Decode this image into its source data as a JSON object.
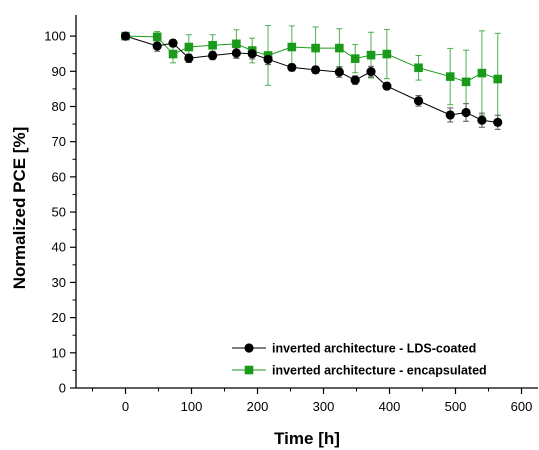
{
  "chart_data": {
    "type": "line",
    "xlabel": "Time [h]",
    "ylabel": "Normalized PCE [%]",
    "xlim": [
      -75,
      625
    ],
    "ylim": [
      0,
      106
    ],
    "xticks": [
      0,
      100,
      200,
      300,
      400,
      500,
      600
    ],
    "yticks": [
      0,
      10,
      20,
      30,
      40,
      50,
      60,
      70,
      80,
      90,
      100
    ],
    "legend_position": "bottom-right",
    "grid": false,
    "series": [
      {
        "name": "inverted architecture - LDS-coated",
        "color": "#000000",
        "marker": "circle",
        "x": [
          0,
          48,
          72,
          96,
          132,
          168,
          192,
          216,
          252,
          288,
          324,
          348,
          372,
          396,
          444,
          492,
          516,
          540,
          564
        ],
        "y": [
          100,
          97.2,
          98.0,
          93.7,
          94.5,
          95.2,
          95.0,
          93.4,
          91.1,
          90.4,
          89.8,
          87.5,
          89.9,
          85.8,
          81.6,
          77.6,
          78.3,
          76.1,
          75.5
        ],
        "err": [
          0.5,
          1.5,
          1.0,
          1.2,
          1.2,
          1.5,
          1.5,
          1.5,
          1.0,
          1.0,
          1.5,
          1.2,
          1.5,
          1.0,
          1.5,
          2.0,
          2.5,
          2.0,
          2.0
        ]
      },
      {
        "name": "inverted architecture - encapsulated",
        "color": "#1a9a1a",
        "marker": "square",
        "x": [
          0,
          48,
          72,
          96,
          132,
          168,
          192,
          216,
          252,
          288,
          324,
          348,
          372,
          396,
          444,
          492,
          516,
          540,
          564
        ],
        "y": [
          100,
          99.8,
          94.9,
          96.9,
          97.4,
          97.8,
          95.9,
          94.5,
          96.9,
          96.6,
          96.6,
          93.6,
          94.6,
          94.9,
          91.0,
          88.5,
          87.0,
          89.5,
          87.8
        ],
        "err": [
          0.5,
          1.5,
          2.5,
          3.5,
          3.0,
          4.0,
          3.5,
          8.5,
          6.0,
          6.0,
          5.5,
          4.0,
          6.5,
          7.0,
          3.5,
          8.0,
          9.0,
          12.0,
          13.0
        ]
      }
    ]
  }
}
